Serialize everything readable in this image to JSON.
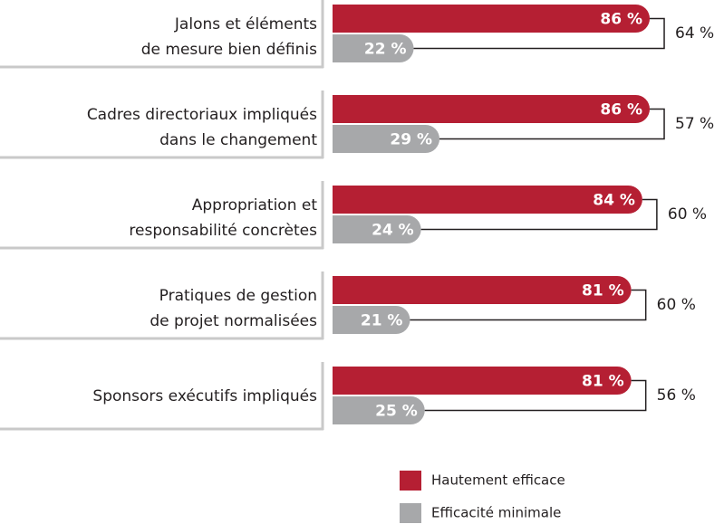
{
  "chart_data": {
    "type": "bar",
    "orientation": "horizontal",
    "categories": [
      [
        "Jalons et éléments",
        "de mesure bien définis"
      ],
      [
        "Cadres directoriaux impliqués",
        "dans le changement"
      ],
      [
        "Appropriation et",
        "responsabilité concrètes"
      ],
      [
        "Pratiques de gestion",
        "de projet normalisées"
      ],
      [
        "Sponsors exécutifs impliqués"
      ]
    ],
    "series": [
      {
        "name": "Hautement efficace",
        "color": "#b51f33",
        "values": [
          86,
          86,
          84,
          81,
          81
        ],
        "value_labels": [
          "86 %",
          "86 %",
          "84 %",
          "81 %",
          "81 %"
        ]
      },
      {
        "name": "Efficacité minimale",
        "color": "#a7a8aa",
        "values": [
          22,
          29,
          24,
          21,
          25
        ],
        "value_labels": [
          "22 %",
          "29 %",
          "24 %",
          "21 %",
          "25 %"
        ]
      }
    ],
    "differences": {
      "values": [
        64,
        57,
        60,
        60,
        56
      ],
      "value_labels": [
        "64 %",
        "57 %",
        "60 %",
        "60 %",
        "56 %"
      ]
    },
    "xlim": [
      0,
      100
    ]
  }
}
